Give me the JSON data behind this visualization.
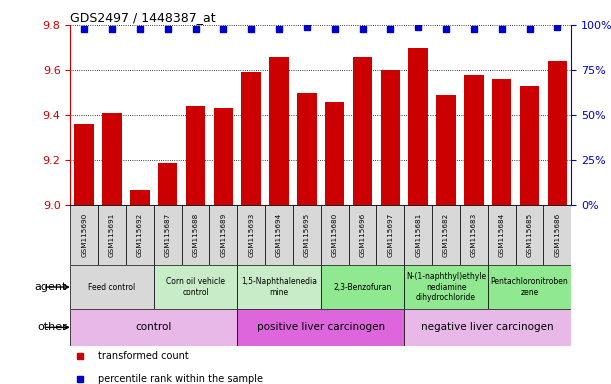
{
  "title": "GDS2497 / 1448387_at",
  "samples": [
    "GSM115690",
    "GSM115691",
    "GSM115692",
    "GSM115687",
    "GSM115688",
    "GSM115689",
    "GSM115693",
    "GSM115694",
    "GSM115695",
    "GSM115680",
    "GSM115696",
    "GSM115697",
    "GSM115681",
    "GSM115682",
    "GSM115683",
    "GSM115684",
    "GSM115685",
    "GSM115686"
  ],
  "bar_values": [
    9.36,
    9.41,
    9.07,
    9.19,
    9.44,
    9.43,
    9.59,
    9.66,
    9.5,
    9.46,
    9.66,
    9.6,
    9.7,
    9.49,
    9.58,
    9.56,
    9.53,
    9.64
  ],
  "percentile_values": [
    98,
    98,
    98,
    98,
    98,
    98,
    98,
    98,
    99,
    98,
    98,
    98,
    99,
    98,
    98,
    98,
    98,
    99
  ],
  "bar_color": "#cc0000",
  "percentile_color": "#0000cc",
  "ylim_left": [
    9.0,
    9.8
  ],
  "ylim_right": [
    0,
    100
  ],
  "yticks_left": [
    9.0,
    9.2,
    9.4,
    9.6,
    9.8
  ],
  "yticks_right": [
    0,
    25,
    50,
    75,
    100
  ],
  "ytick_labels_right": [
    "0%",
    "25%",
    "50%",
    "75%",
    "100%"
  ],
  "agent_groups": [
    {
      "label": "Feed control",
      "start": 0,
      "end": 3,
      "color": "#d8d8d8"
    },
    {
      "label": "Corn oil vehicle\ncontrol",
      "start": 3,
      "end": 6,
      "color": "#c8ecc8"
    },
    {
      "label": "1,5-Naphthalenedia\nmine",
      "start": 6,
      "end": 9,
      "color": "#c8ecc8"
    },
    {
      "label": "2,3-Benzofuran",
      "start": 9,
      "end": 12,
      "color": "#90e890"
    },
    {
      "label": "N-(1-naphthyl)ethyle\nnediamine\ndihydrochloride",
      "start": 12,
      "end": 15,
      "color": "#90e890"
    },
    {
      "label": "Pentachloronitroben\nzene",
      "start": 15,
      "end": 18,
      "color": "#90e890"
    }
  ],
  "other_groups": [
    {
      "label": "control",
      "start": 0,
      "end": 6,
      "color": "#e8b8e8"
    },
    {
      "label": "positive liver carcinogen",
      "start": 6,
      "end": 12,
      "color": "#dd66dd"
    },
    {
      "label": "negative liver carcinogen",
      "start": 12,
      "end": 18,
      "color": "#e8b8e8"
    }
  ],
  "legend_items": [
    {
      "color": "#cc0000",
      "label": "transformed count"
    },
    {
      "color": "#0000cc",
      "label": "percentile rank within the sample"
    }
  ],
  "agent_row_label": "agent",
  "other_row_label": "other",
  "sample_box_color": "#d8d8d8",
  "background_color": "#ffffff",
  "tick_color_left": "#cc0000",
  "tick_color_right": "#0000cc"
}
